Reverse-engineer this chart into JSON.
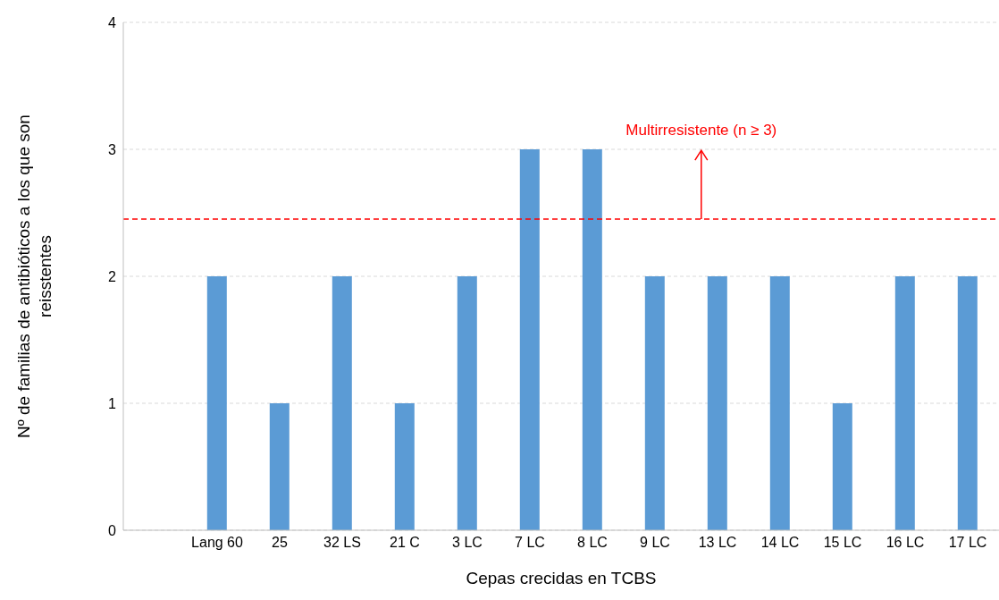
{
  "chart_data": {
    "type": "bar",
    "xlabel": "Cepas crecidas en TCBS",
    "ylabel": "Nº de familias de antibióticos a los que son reisstentes",
    "categories": [
      null,
      "Lang 60",
      "25",
      "32 LS",
      "21 C",
      "3 LC",
      "7 LC",
      "8 LC",
      "9 LC",
      "13 LC",
      "14 LC",
      "15 LC",
      "16 LC",
      "17 LC"
    ],
    "values": [
      null,
      2,
      1,
      2,
      1,
      2,
      3,
      3,
      2,
      2,
      2,
      1,
      2,
      2
    ],
    "color": "#5b9bd5",
    "ylim": [
      0,
      4
    ],
    "yticks": [
      0,
      1,
      2,
      3,
      4
    ],
    "grid": "y",
    "legend": false,
    "ref_lines": [
      {
        "axis": "y",
        "value": 2.45,
        "label": "Multirresistente (n ≥ 3)",
        "color": "#ff0000",
        "line_style": "dashed"
      }
    ]
  }
}
